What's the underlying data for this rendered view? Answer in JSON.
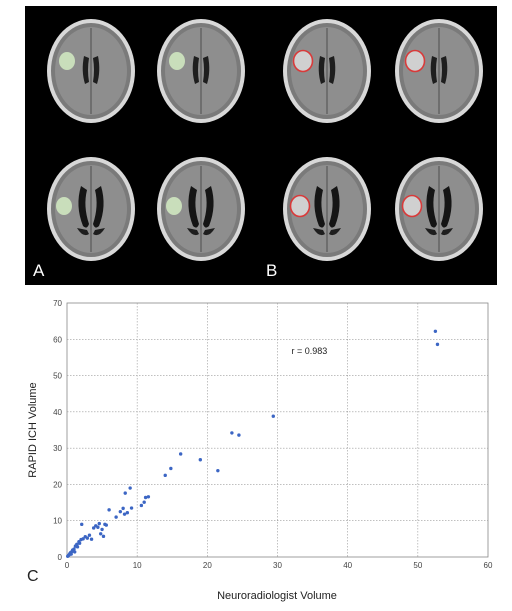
{
  "panels": {
    "label_a": "A",
    "label_b": "B",
    "label_c": "C",
    "hemorrhage_overlay_color_a": "#cfe7c0",
    "hemorrhage_outline_color_b": "#d93a3a"
  },
  "chart_data": {
    "type": "scatter",
    "xlabel": "Neuroradiologist Volume",
    "ylabel": "RAPID ICH Volume",
    "xlim": [
      0,
      60
    ],
    "ylim": [
      0,
      70
    ],
    "xticks": [
      0,
      10,
      20,
      30,
      40,
      50,
      60
    ],
    "yticks": [
      0,
      10,
      20,
      30,
      40,
      50,
      60,
      70
    ],
    "grid": true,
    "point_color": "#3c66c4",
    "annotation": "r = 0.983",
    "annotation_position": [
      32,
      56
    ],
    "points": [
      [
        0.1,
        0.2
      ],
      [
        0.2,
        0.4
      ],
      [
        0.3,
        0.6
      ],
      [
        0.4,
        0.9
      ],
      [
        0.5,
        1.2
      ],
      [
        0.6,
        0.8
      ],
      [
        0.7,
        1.5
      ],
      [
        0.8,
        1.9
      ],
      [
        1.0,
        2.2
      ],
      [
        1.1,
        1.4
      ],
      [
        1.2,
        3.0
      ],
      [
        1.4,
        3.5
      ],
      [
        1.5,
        2.8
      ],
      [
        1.7,
        4.2
      ],
      [
        1.8,
        3.8
      ],
      [
        2.0,
        4.8
      ],
      [
        2.1,
        9.0
      ],
      [
        2.3,
        5.0
      ],
      [
        2.6,
        5.6
      ],
      [
        2.9,
        5.2
      ],
      [
        3.2,
        6.0
      ],
      [
        3.5,
        4.9
      ],
      [
        3.8,
        8.0
      ],
      [
        4.1,
        8.6
      ],
      [
        4.4,
        8.2
      ],
      [
        4.6,
        9.2
      ],
      [
        4.8,
        6.4
      ],
      [
        5.0,
        7.6
      ],
      [
        5.2,
        5.7
      ],
      [
        5.4,
        9.0
      ],
      [
        5.6,
        8.8
      ],
      [
        6.0,
        13.0
      ],
      [
        7.0,
        11.0
      ],
      [
        7.6,
        12.5
      ],
      [
        8.0,
        13.4
      ],
      [
        8.2,
        11.8
      ],
      [
        8.3,
        17.6
      ],
      [
        8.6,
        12.2
      ],
      [
        9.0,
        19.0
      ],
      [
        9.2,
        13.5
      ],
      [
        10.6,
        14.2
      ],
      [
        11.0,
        15.1
      ],
      [
        11.2,
        16.4
      ],
      [
        11.6,
        16.6
      ],
      [
        14.0,
        22.5
      ],
      [
        14.8,
        24.4
      ],
      [
        16.2,
        28.4
      ],
      [
        19.0,
        26.8
      ],
      [
        21.5,
        23.8
      ],
      [
        23.5,
        34.2
      ],
      [
        24.5,
        33.6
      ],
      [
        29.4,
        38.8
      ],
      [
        52.5,
        62.2
      ],
      [
        52.8,
        58.6
      ]
    ]
  }
}
